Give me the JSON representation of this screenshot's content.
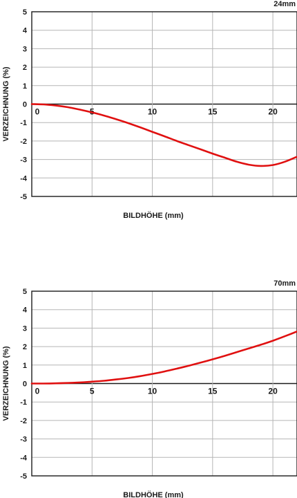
{
  "chart_data": [
    {
      "type": "line",
      "title": "24mm",
      "xlabel": "BILDHÖHE (mm)",
      "ylabel": "VERZEICHNUNG (%)",
      "xlim": [
        0,
        22
      ],
      "ylim": [
        -5,
        5
      ],
      "xticks": [
        0,
        5,
        10,
        15,
        20
      ],
      "yticks": [
        5,
        4,
        3,
        2,
        1,
        0,
        -1,
        -2,
        -3,
        -4,
        -5
      ],
      "grid": true,
      "line_color": "#e01010",
      "series": [
        {
          "x": [
            0,
            1,
            2,
            3,
            4,
            5,
            6,
            7,
            8,
            9,
            10,
            11,
            12,
            13,
            14,
            15,
            16,
            17,
            18,
            19,
            20,
            21,
            22
          ],
          "values": [
            0,
            -0.02,
            -0.08,
            -0.17,
            -0.3,
            -0.45,
            -0.62,
            -0.82,
            -1.03,
            -1.26,
            -1.5,
            -1.74,
            -1.99,
            -2.22,
            -2.45,
            -2.68,
            -2.9,
            -3.12,
            -3.28,
            -3.35,
            -3.3,
            -3.12,
            -2.85
          ]
        }
      ]
    },
    {
      "type": "line",
      "title": "70mm",
      "xlabel": "BILDHÖHE (mm)",
      "ylabel": "VERZEICHNUNG (%)",
      "xlim": [
        0,
        22
      ],
      "ylim": [
        -5,
        5
      ],
      "xticks": [
        0,
        5,
        10,
        15,
        20
      ],
      "yticks": [
        5,
        4,
        3,
        2,
        1,
        0,
        -1,
        -2,
        -3,
        -4,
        -5
      ],
      "grid": true,
      "line_color": "#e01010",
      "series": [
        {
          "x": [
            0,
            1,
            2,
            3,
            4,
            5,
            6,
            7,
            8,
            9,
            10,
            11,
            12,
            13,
            14,
            15,
            16,
            17,
            18,
            19,
            20,
            21,
            22
          ],
          "values": [
            0,
            0.0,
            0.01,
            0.03,
            0.06,
            0.1,
            0.15,
            0.22,
            0.3,
            0.4,
            0.52,
            0.65,
            0.8,
            0.96,
            1.13,
            1.31,
            1.5,
            1.7,
            1.9,
            2.1,
            2.32,
            2.56,
            2.82
          ]
        }
      ]
    }
  ]
}
